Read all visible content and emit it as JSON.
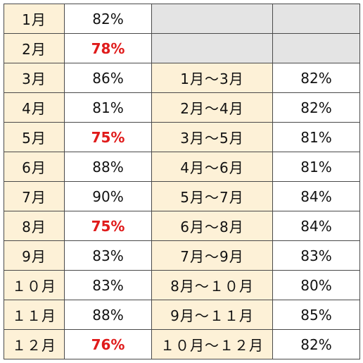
{
  "colors": {
    "label_background": "#fdf1d7",
    "empty_cell_background": "#e4e4e4",
    "highlight_text": "#e01b1b",
    "grid_line": "#4a4a4a"
  },
  "rows": [
    {
      "month": "1月",
      "rate": "82%",
      "low": false,
      "period": "",
      "period_rate": ""
    },
    {
      "month": "2月",
      "rate": "78%",
      "low": true,
      "period": "",
      "period_rate": ""
    },
    {
      "month": "3月",
      "rate": "86%",
      "low": false,
      "period": "1月～3月",
      "period_rate": "82%"
    },
    {
      "month": "4月",
      "rate": "81%",
      "low": false,
      "period": "2月～4月",
      "period_rate": "82%"
    },
    {
      "month": "5月",
      "rate": "75%",
      "low": true,
      "period": "3月～5月",
      "period_rate": "81%"
    },
    {
      "month": "6月",
      "rate": "88%",
      "low": false,
      "period": "4月～6月",
      "period_rate": "81%"
    },
    {
      "month": "7月",
      "rate": "90%",
      "low": false,
      "period": "5月～7月",
      "period_rate": "84%"
    },
    {
      "month": "8月",
      "rate": "75%",
      "low": true,
      "period": "6月～8月",
      "period_rate": "84%"
    },
    {
      "month": "9月",
      "rate": "83%",
      "low": false,
      "period": "7月～9月",
      "period_rate": "83%"
    },
    {
      "month": "１０月",
      "rate": "83%",
      "low": false,
      "period": "8月～１０月",
      "period_rate": "80%"
    },
    {
      "month": "１１月",
      "rate": "88%",
      "low": false,
      "period": "9月～１１月",
      "period_rate": "85%"
    },
    {
      "month": "１２月",
      "rate": "76%",
      "low": true,
      "period": "１０月～１２月",
      "period_rate": "82%"
    }
  ]
}
